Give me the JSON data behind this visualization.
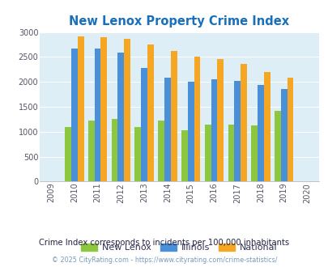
{
  "title": "New Lenox Property Crime Index",
  "years": [
    2009,
    2010,
    2011,
    2012,
    2013,
    2014,
    2015,
    2016,
    2017,
    2018,
    2019,
    2020
  ],
  "new_lenox": [
    null,
    1090,
    1220,
    1260,
    1090,
    1220,
    1030,
    1150,
    1140,
    1120,
    1420,
    null
  ],
  "illinois": [
    null,
    2670,
    2670,
    2590,
    2280,
    2090,
    2000,
    2060,
    2020,
    1940,
    1850,
    null
  ],
  "national": [
    null,
    2920,
    2900,
    2860,
    2750,
    2620,
    2500,
    2460,
    2360,
    2190,
    2090,
    null
  ],
  "new_lenox_color": "#8dc63f",
  "illinois_color": "#4a90d9",
  "national_color": "#f5a623",
  "bg_color": "#ddeef6",
  "title_color": "#1a6fba",
  "ylim": [
    0,
    3000
  ],
  "yticks": [
    0,
    500,
    1000,
    1500,
    2000,
    2500,
    3000
  ],
  "subtitle": "Crime Index corresponds to incidents per 100,000 inhabitants",
  "footer": "© 2025 CityRating.com - https://www.cityrating.com/crime-statistics/",
  "subtitle_color": "#222244",
  "footer_color": "#7799bb",
  "legend_labels": [
    "New Lenox",
    "Illinois",
    "National"
  ],
  "bar_width": 0.27
}
